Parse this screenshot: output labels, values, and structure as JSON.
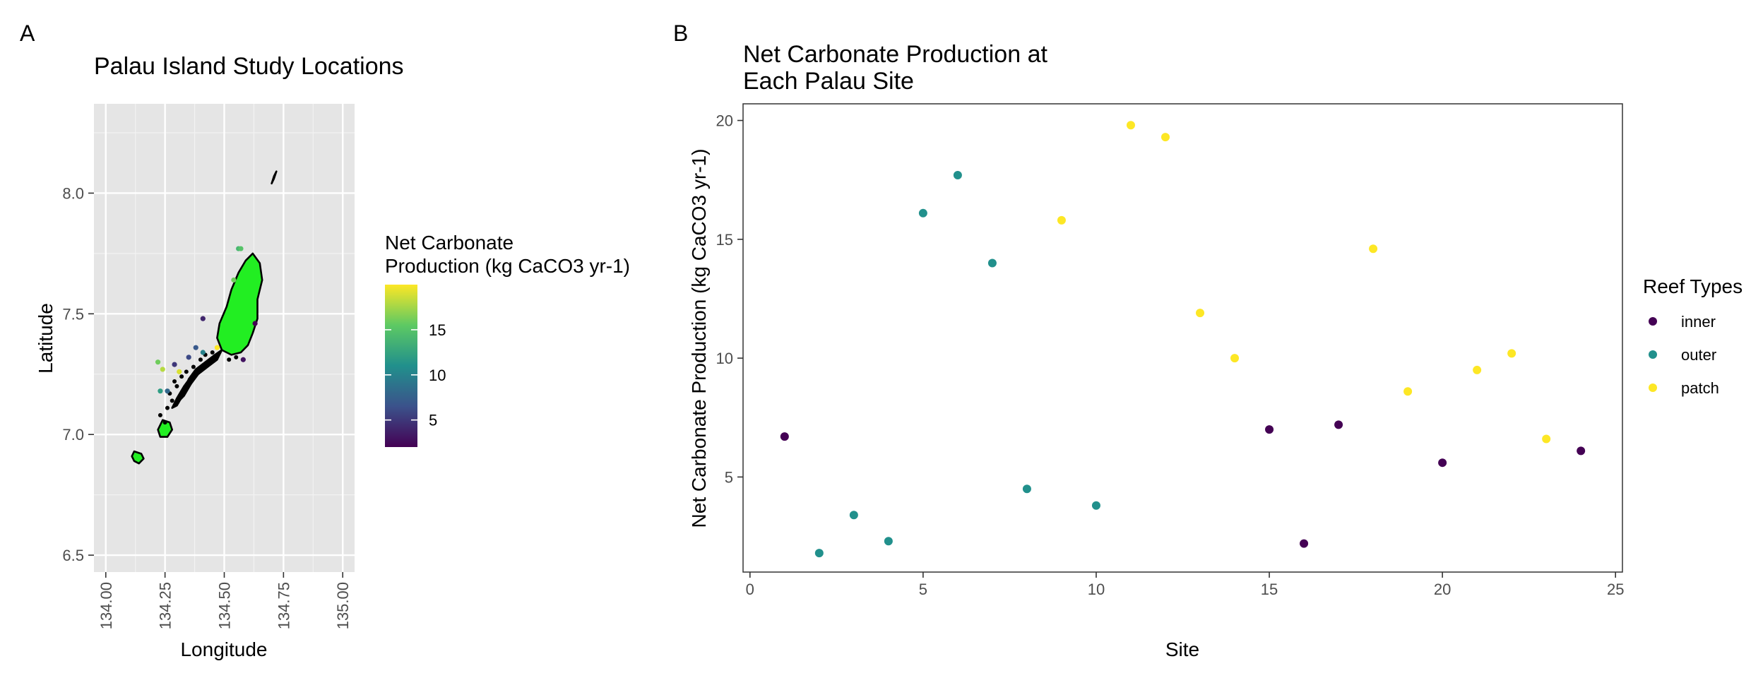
{
  "chart_data": [
    {
      "panel_label": "A",
      "type": "scatter",
      "title": "Palau Island Study Locations",
      "xlabel": "Longitude",
      "ylabel": "Latitude",
      "xlim": [
        133.95,
        135.05
      ],
      "ylim": [
        6.43,
        8.37
      ],
      "xticks": [
        134.0,
        134.25,
        134.5,
        134.75,
        135.0
      ],
      "xtick_labels": [
        "134.00",
        "134.25",
        "134.50",
        "134.75",
        "135.00"
      ],
      "yticks": [
        6.5,
        7.0,
        7.5,
        8.0
      ],
      "ytick_labels": [
        "6.5",
        "7.0",
        "7.5",
        "8.0"
      ],
      "background": "#e5e5e5",
      "grid": true,
      "land_fill": "#22ee22",
      "land_outline": "#000000",
      "colorbar": {
        "title_line1": "Net Carbonate",
        "title_line2": "Production (kg CaCO3 yr-1)",
        "min": 2,
        "max": 20,
        "ticks": [
          5,
          10,
          15
        ],
        "tick_labels": [
          "5",
          "10",
          "15"
        ],
        "colors": [
          "#440154",
          "#3b528b",
          "#21908c",
          "#5dc963",
          "#fde725"
        ]
      },
      "points": [
        {
          "lon": 134.22,
          "lat": 7.3,
          "v": 16
        },
        {
          "lon": 134.24,
          "lat": 7.27,
          "v": 18
        },
        {
          "lon": 134.23,
          "lat": 7.18,
          "v": 12
        },
        {
          "lon": 134.26,
          "lat": 7.18,
          "v": 8
        },
        {
          "lon": 134.29,
          "lat": 7.29,
          "v": 5
        },
        {
          "lon": 134.31,
          "lat": 7.26,
          "v": 19
        },
        {
          "lon": 134.35,
          "lat": 7.32,
          "v": 6
        },
        {
          "lon": 134.38,
          "lat": 7.36,
          "v": 7
        },
        {
          "lon": 134.41,
          "lat": 7.34,
          "v": 10
        },
        {
          "lon": 134.41,
          "lat": 7.48,
          "v": 4
        },
        {
          "lon": 134.47,
          "lat": 7.36,
          "v": 20
        },
        {
          "lon": 134.54,
          "lat": 7.64,
          "v": 16
        },
        {
          "lon": 134.56,
          "lat": 7.77,
          "v": 14
        },
        {
          "lon": 134.57,
          "lat": 7.77,
          "v": 15
        },
        {
          "lon": 134.58,
          "lat": 7.31,
          "v": 3
        },
        {
          "lon": 134.63,
          "lat": 7.46,
          "v": 2
        }
      ]
    },
    {
      "panel_label": "B",
      "type": "scatter",
      "title_line1": "Net Carbonate Production at",
      "title_line2": "Each Palau Site",
      "xlabel": "Site",
      "ylabel": "Net Carbonate Production (kg CaCO3 yr-1)",
      "xlim": [
        -0.2,
        25.2
      ],
      "ylim": [
        1.0,
        20.7
      ],
      "xticks": [
        0,
        5,
        10,
        15,
        20,
        25
      ],
      "yticks": [
        5,
        10,
        15,
        20
      ],
      "grid": false,
      "legend": {
        "title": "Reef Types",
        "position": "right",
        "entries": [
          {
            "name": "inner",
            "color": "#440154"
          },
          {
            "name": "outer",
            "color": "#21908c"
          },
          {
            "name": "patch",
            "color": "#fde725"
          }
        ]
      },
      "series": [
        {
          "name": "inner",
          "color": "#440154",
          "x": [
            1,
            15,
            16,
            17,
            20,
            24
          ],
          "y": [
            6.7,
            7.0,
            2.2,
            7.2,
            5.6,
            6.1
          ]
        },
        {
          "name": "outer",
          "color": "#21908c",
          "x": [
            2,
            3,
            4,
            5,
            6,
            7,
            8,
            10
          ],
          "y": [
            1.8,
            3.4,
            2.3,
            16.1,
            17.7,
            14.0,
            4.5,
            3.8
          ]
        },
        {
          "name": "patch",
          "color": "#fde725",
          "x": [
            9,
            11,
            12,
            13,
            14,
            18,
            19,
            21,
            22,
            23
          ],
          "y": [
            15.8,
            19.8,
            19.3,
            11.9,
            10.0,
            14.6,
            8.6,
            9.5,
            10.2,
            6.6
          ]
        }
      ]
    }
  ]
}
